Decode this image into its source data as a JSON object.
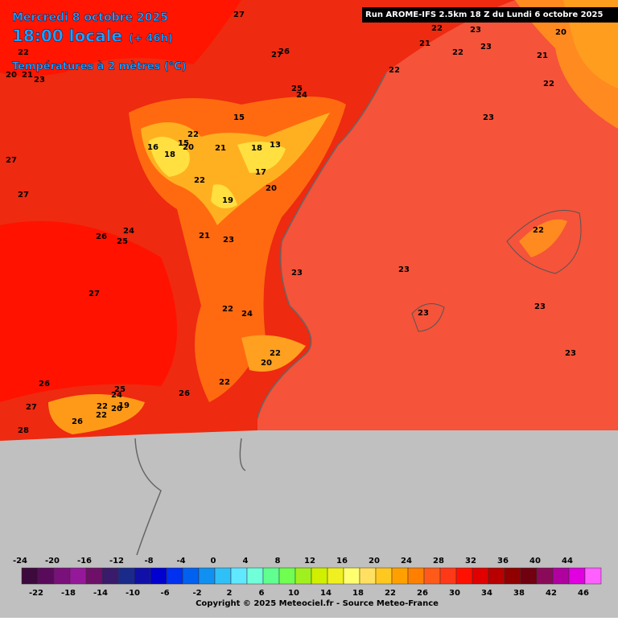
{
  "header": {
    "date": "Mercredi 8 octobre 2025",
    "time": "18:00 locale",
    "lead": "(+ 46h)",
    "field": "Températures à 2 mètres (°C)",
    "run": "Run AROME-IFS 2.5km 18 Z du Lundi 6 octobre 2025"
  },
  "map": {
    "labels": [
      27,
      22,
      23,
      20,
      22,
      27,
      26,
      21,
      22,
      23,
      21,
      20,
      21,
      23,
      22,
      25,
      24,
      22,
      15,
      23,
      22,
      16,
      18,
      15,
      20,
      21,
      18,
      13,
      27,
      22,
      17,
      20,
      27,
      19,
      26,
      25,
      24,
      21,
      23,
      22,
      23,
      23,
      27,
      22,
      24,
      23,
      23,
      22,
      20,
      23,
      26,
      22,
      26,
      25,
      24,
      27,
      22,
      20,
      19,
      22,
      26,
      28
    ]
  },
  "colorbar": {
    "ticks": [
      -24,
      -22,
      -20,
      -18,
      -16,
      -14,
      -12,
      -10,
      -8,
      -6,
      -4,
      -2,
      0,
      2,
      4,
      6,
      8,
      10,
      12,
      14,
      16,
      18,
      20,
      22,
      24,
      26,
      28,
      30,
      32,
      34,
      36,
      38,
      40,
      42,
      44,
      46
    ],
    "colors": [
      "#3c0a3c",
      "#5a0a5a",
      "#7a107a",
      "#96189a",
      "#6e1068",
      "#3a1a6a",
      "#1a2a8a",
      "#1010a8",
      "#0000d0",
      "#0030f0",
      "#0060f0",
      "#1090f0",
      "#30c0f8",
      "#60e8ff",
      "#70ffd8",
      "#60ff90",
      "#70ff50",
      "#a0f020",
      "#d0f000",
      "#f0f020",
      "#ffff70",
      "#ffe060",
      "#ffc820",
      "#ffa000",
      "#ff8000",
      "#ff5a1a",
      "#ff3818",
      "#ff1000",
      "#e00000",
      "#b80000",
      "#900000",
      "#700010",
      "#8a0a5a",
      "#b000a0",
      "#e000e0",
      "#ff60ff"
    ]
  },
  "footer": {
    "copyright": "Copyright © 2025 Meteociel.fr - Source Meteo-France"
  }
}
